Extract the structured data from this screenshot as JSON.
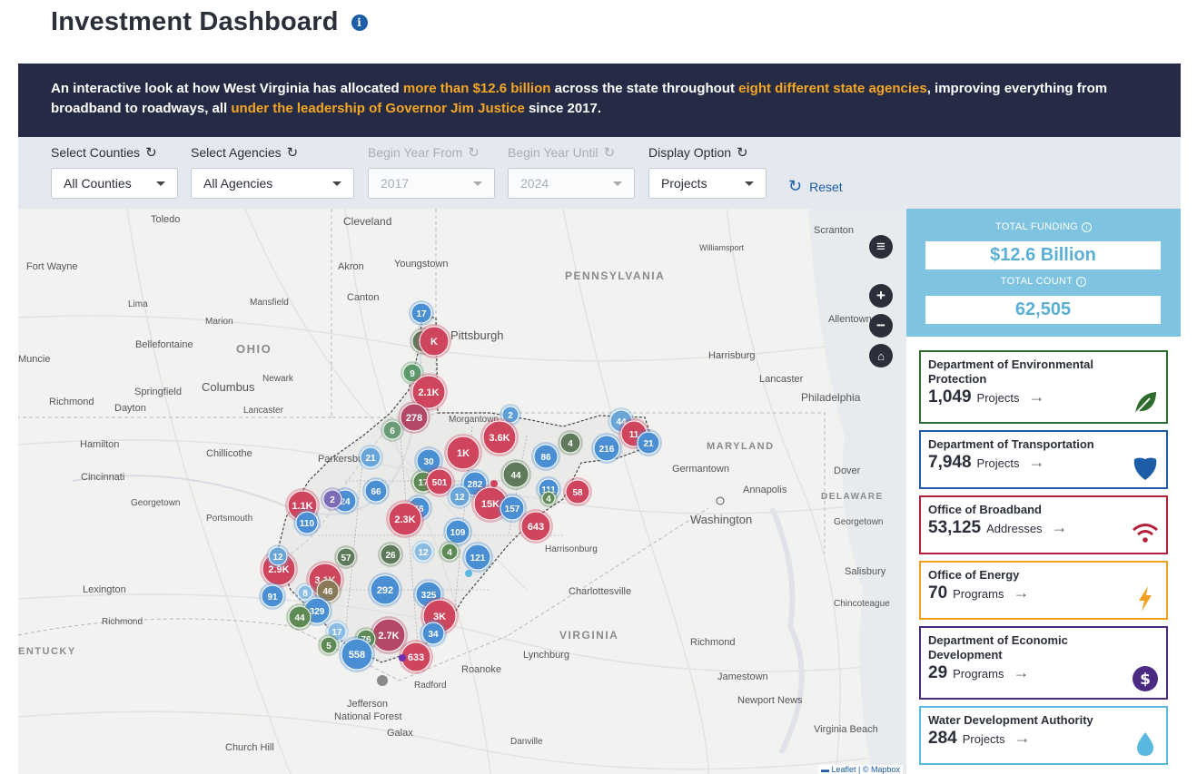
{
  "header": {
    "title": "Investment Dashboard",
    "info_icon": "info-icon"
  },
  "banner": {
    "p1": "An interactive look at how West Virginia has allocated ",
    "h1": "more than $12.6 billion",
    "p2": " across the state throughout ",
    "h2": "eight different state agencies",
    "p3": ", improving everything from broadband to roadways, all ",
    "h3": "under the leadership of Governor Jim Justice",
    "p4": " since 2017.",
    "highlight_color": "#f5a623"
  },
  "filters": {
    "counties": {
      "label": "Select Counties",
      "value": "All Counties"
    },
    "agencies": {
      "label": "Select Agencies",
      "value": "All Agencies"
    },
    "year_from": {
      "label": "Begin Year From",
      "value": "2017"
    },
    "year_until": {
      "label": "Begin Year Until",
      "value": "2024"
    },
    "display": {
      "label": "Display Option",
      "value": "Projects"
    },
    "reset_label": "Reset"
  },
  "map": {
    "places": [
      {
        "name": "Toledo"
      },
      {
        "name": "Cleveland"
      },
      {
        "name": "Scranton"
      },
      {
        "name": "Fort Wayne"
      },
      {
        "name": "Akron"
      },
      {
        "name": "Youngstown"
      },
      {
        "name": "Williamsport"
      },
      {
        "name": "PENNSYLVANIA"
      },
      {
        "name": "Canton"
      },
      {
        "name": "Lima"
      },
      {
        "name": "Mansfield"
      },
      {
        "name": "Marion"
      },
      {
        "name": "Allentown"
      },
      {
        "name": "Pittsburgh"
      },
      {
        "name": "OHIO"
      },
      {
        "name": "Bellefontaine"
      },
      {
        "name": "Muncie"
      },
      {
        "name": "Harrisburg"
      },
      {
        "name": "Columbus"
      },
      {
        "name": "Newark"
      },
      {
        "name": "Springfield"
      },
      {
        "name": "Lancaster"
      },
      {
        "name": "Richmond"
      },
      {
        "name": "Dayton"
      },
      {
        "name": "Philadelphia"
      },
      {
        "name": "Lancaster"
      },
      {
        "name": "Morgantown"
      },
      {
        "name": "Hamilton"
      },
      {
        "name": "Chillicothe"
      },
      {
        "name": "MARYLAND"
      },
      {
        "name": "Cincinnati"
      },
      {
        "name": "Parkersburg"
      },
      {
        "name": "Germantown"
      },
      {
        "name": "Dover"
      },
      {
        "name": "Annapolis"
      },
      {
        "name": "DELAWARE"
      },
      {
        "name": "Georgetown"
      },
      {
        "name": "Portsmouth"
      },
      {
        "name": "Washington"
      },
      {
        "name": "Georgetown"
      },
      {
        "name": "Harrisonburg"
      },
      {
        "name": "Salisbury"
      },
      {
        "name": "Lexington"
      },
      {
        "name": "Charlottesville"
      },
      {
        "name": "Richmond"
      },
      {
        "name": "Chincoteague"
      },
      {
        "name": "VIRGINIA"
      },
      {
        "name": "Richmond"
      },
      {
        "name": "ENTUCKY"
      },
      {
        "name": "Lynchburg"
      },
      {
        "name": "Roanoke"
      },
      {
        "name": "Jamestown"
      },
      {
        "name": "Newport News"
      },
      {
        "name": "Radford"
      },
      {
        "name": "Jefferson National Forest"
      },
      {
        "name": "Virginia Beach"
      },
      {
        "name": "Galax"
      },
      {
        "name": "Danville"
      },
      {
        "name": "Church Hill"
      }
    ],
    "markers": [
      {
        "label": "17",
        "c": "#4a8fd4"
      },
      {
        "label": "16",
        "c": "#5e7a5a"
      },
      {
        "label": "K",
        "c": "#d0455e"
      },
      {
        "label": "9",
        "c": "#5a9a6a"
      },
      {
        "label": "2.1K",
        "c": "#d0455e"
      },
      {
        "label": "278",
        "c": "#b34868"
      },
      {
        "label": "6",
        "c": "#6b9c78"
      },
      {
        "label": "2",
        "c": "#5d9ed6"
      },
      {
        "label": "3.6K",
        "c": "#d0455e"
      },
      {
        "label": "1K",
        "c": "#d0455e"
      },
      {
        "label": "30",
        "c": "#4a8fd4"
      },
      {
        "label": "17",
        "c": "#5e8a55"
      },
      {
        "label": "501",
        "c": "#d0455e"
      },
      {
        "label": "282",
        "c": "#4a8fd4"
      },
      {
        "label": "12",
        "c": "#6aa5d8"
      },
      {
        "label": "15K",
        "c": "#d0455e"
      },
      {
        "label": "157",
        "c": "#4a8fd4"
      },
      {
        "label": "44",
        "c": "#5e7a5a"
      },
      {
        "label": "86",
        "c": "#4a8fd4"
      },
      {
        "label": "216",
        "c": "#4a8fd4"
      },
      {
        "label": "4",
        "c": "#5e7a5a"
      },
      {
        "label": "44",
        "c": "#6aa5d8"
      },
      {
        "label": "11",
        "c": "#d0455e"
      },
      {
        "label": "21",
        "c": "#4a8fd4"
      },
      {
        "label": "111",
        "c": "#4a8fd4"
      },
      {
        "label": "58",
        "c": "#d0455e"
      },
      {
        "label": "643",
        "c": "#d0455e"
      },
      {
        "label": "4",
        "c": "#5e8a55"
      },
      {
        "label": "21",
        "c": "#6aa5d8"
      },
      {
        "label": "24",
        "c": "#4a8fd4"
      },
      {
        "label": "66",
        "c": "#4a8fd4"
      },
      {
        "label": "1.1K",
        "c": "#d0455e"
      },
      {
        "label": "110",
        "c": "#4a8fd4"
      },
      {
        "label": "2",
        "c": "#7b6bb8"
      },
      {
        "label": "76",
        "c": "#4a8fd4"
      },
      {
        "label": "2.3K",
        "c": "#d0455e"
      },
      {
        "label": "109",
        "c": "#4a8fd4"
      },
      {
        "label": "121",
        "c": "#4a8fd4"
      },
      {
        "label": "4",
        "c": "#5e8a55"
      },
      {
        "label": "12",
        "c": "#8bbde4"
      },
      {
        "label": "26",
        "c": "#5e7a5a"
      },
      {
        "label": "2.9K",
        "c": "#d0455e"
      },
      {
        "label": "3.1K",
        "c": "#d0455e"
      },
      {
        "label": "91",
        "c": "#4a8fd4"
      },
      {
        "label": "46",
        "c": "#8a7a5a"
      },
      {
        "label": "292",
        "c": "#4a8fd4"
      },
      {
        "label": "325",
        "c": "#4a8fd4"
      },
      {
        "label": "3K",
        "c": "#d0455e"
      },
      {
        "label": "329",
        "c": "#4a8fd4"
      },
      {
        "label": "44",
        "c": "#5e8a55"
      },
      {
        "label": "34",
        "c": "#4a8fd4"
      },
      {
        "label": "2.7K",
        "c": "#b34868"
      },
      {
        "label": "76",
        "c": "#5e8a55"
      },
      {
        "label": "17",
        "c": "#8bbde4"
      },
      {
        "label": "5",
        "c": "#5e8a55"
      },
      {
        "label": "558",
        "c": "#4a8fd4"
      },
      {
        "label": "633",
        "c": "#d0455e"
      },
      {
        "label": "12",
        "c": "#6aa5d8"
      },
      {
        "label": "57",
        "c": "#5e7a5a"
      },
      {
        "label": "8",
        "c": "#8bbde4"
      }
    ],
    "attribution_prefix": "▬ ",
    "attribution_leaflet": "Leaflet",
    "attribution_sep": " | © ",
    "attribution_mapbox": "Mapbox"
  },
  "totals": {
    "funding_label": "TOTAL FUNDING",
    "funding_value": "$12.6 Billion",
    "count_label": "TOTAL COUNT",
    "count_value": "62,505",
    "bg_color": "#7ec3e0"
  },
  "agencies": [
    {
      "name": "Department of Environmental Protection",
      "count": "1,049",
      "unit": "Projects",
      "color": "#2e6b2e",
      "icon": "leaf-icon"
    },
    {
      "name": "Department of Transportation",
      "count": "7,948",
      "unit": "Projects",
      "color": "#1d5da8",
      "icon": "shield-icon"
    },
    {
      "name": "Office of Broadband",
      "count": "53,125",
      "unit": "Addresses",
      "color": "#b3203a",
      "icon": "wifi-icon"
    },
    {
      "name": "Office of Energy",
      "count": "70",
      "unit": "Programs",
      "color": "#f0a020",
      "icon": "lightning-icon"
    },
    {
      "name": "Department of Economic Development",
      "count": "29",
      "unit": "Programs",
      "color": "#4b2a82",
      "icon": "dollar-icon"
    },
    {
      "name": "Water Development Authority",
      "count": "284",
      "unit": "Projects",
      "color": "#5ab8e0",
      "icon": "water-drop-icon"
    }
  ]
}
